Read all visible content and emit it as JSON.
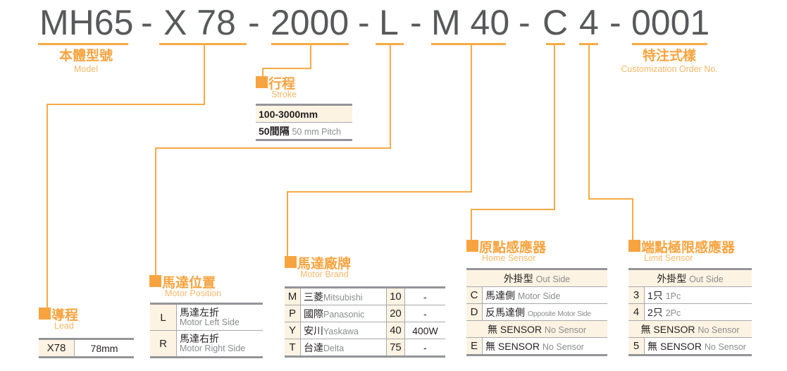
{
  "code": {
    "segments": [
      "MH65",
      "-",
      "X 78",
      "-",
      "2000",
      "-",
      "L",
      "-",
      "M 40",
      "-",
      "C",
      "4",
      "-",
      "0001"
    ]
  },
  "labels": {
    "model": {
      "zh": "本體型號",
      "en": "Model"
    },
    "custom": {
      "zh": "特注式樣",
      "en": "Customization Order No."
    }
  },
  "accent_color": "#f7a440",
  "stroke": {
    "zh": "行程",
    "en": "Stroke",
    "range": "100-3000mm",
    "pitch_zh": "50間隔",
    "pitch_en": "50 mm Pitch"
  },
  "lead": {
    "zh": "導程",
    "en": "Lead",
    "rows": [
      {
        "code": "X78",
        "value": "78mm"
      }
    ]
  },
  "motor_position": {
    "zh": "馬達位置",
    "en": "Motor Position",
    "rows": [
      {
        "code": "L",
        "zh": "馬達左折",
        "en": "Motor Left Side"
      },
      {
        "code": "R",
        "zh": "馬達右折",
        "en": "Motor Right Side"
      }
    ]
  },
  "motor_brand": {
    "zh": "馬達廠牌",
    "en": "Motor Brand",
    "rows": [
      {
        "code": "M",
        "zh": "三菱",
        "en": "Mitsubishi",
        "size": "10",
        "power": "-"
      },
      {
        "code": "P",
        "zh": "國際",
        "en": "Panasonic",
        "size": "20",
        "power": "-"
      },
      {
        "code": "Y",
        "zh": "安川",
        "en": "Yaskawa",
        "size": "40",
        "power": "400W"
      },
      {
        "code": "T",
        "zh": "台達",
        "en": "Delta",
        "size": "75",
        "power": "-"
      }
    ]
  },
  "home_sensor": {
    "zh": "原點感應器",
    "en": "Home Sensor",
    "header_zh": "外掛型",
    "header_en": "Out Side",
    "rows": [
      {
        "code": "C",
        "zh": "馬達側",
        "en": "Motor Side"
      },
      {
        "code": "D",
        "zh": "反馬達側",
        "en": "Opposite Motor Side"
      }
    ],
    "none_zh": "無 SENSOR",
    "none_en": "No Sensor",
    "last": {
      "code": "E",
      "zh": "無 SENSOR",
      "en": "No Sensor"
    }
  },
  "limit_sensor": {
    "zh": "端點極限感應器",
    "en": "Limit Sensor",
    "header_zh": "外掛型",
    "header_en": "Out Side",
    "rows": [
      {
        "code": "3",
        "zh": "1只",
        "en": "1Pc"
      },
      {
        "code": "4",
        "zh": "2只",
        "en": "2Pc"
      }
    ],
    "none_zh": "無 SENSOR",
    "none_en": "No Sensor",
    "last": {
      "code": "5",
      "zh": "無 SENSOR",
      "en": "No Sensor"
    }
  }
}
